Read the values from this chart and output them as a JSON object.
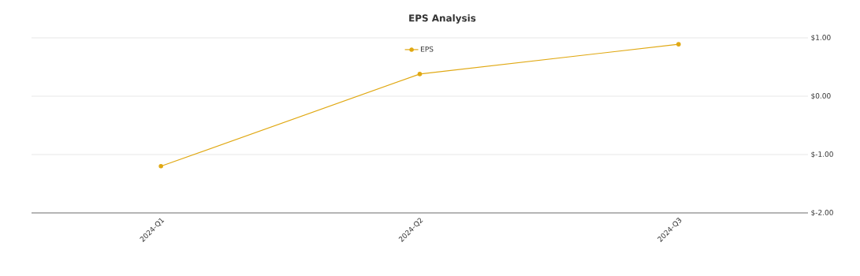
{
  "chart_data": {
    "type": "line",
    "title": "EPS Analysis",
    "categories": [
      "2024-Q1",
      "2024-Q2",
      "2024-Q3"
    ],
    "series": [
      {
        "name": "EPS",
        "color": "#e0a812",
        "values": [
          -1.2,
          0.38,
          0.89
        ]
      }
    ],
    "ylim": [
      -2,
      1
    ],
    "yticks": [
      {
        "value": -2,
        "label": "$-2.00"
      },
      {
        "value": -1,
        "label": "$-1.00"
      },
      {
        "value": 0,
        "label": "$0.00"
      },
      {
        "value": 1,
        "label": "$1.00"
      }
    ],
    "grid": "y",
    "legend": "top",
    "marker": "circle",
    "line_style": "solid"
  }
}
